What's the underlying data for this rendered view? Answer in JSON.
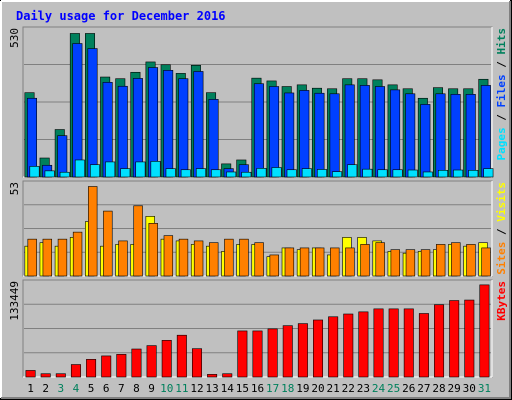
{
  "chart_data": {
    "type": "bar",
    "title": "Daily usage for December 2016",
    "days": [
      "1",
      "2",
      "3",
      "4",
      "5",
      "6",
      "7",
      "8",
      "9",
      "10",
      "11",
      "12",
      "13",
      "14",
      "15",
      "16",
      "17",
      "18",
      "19",
      "20",
      "21",
      "22",
      "23",
      "24",
      "25",
      "26",
      "27",
      "28",
      "29",
      "30",
      "31"
    ],
    "weekend_days": [
      "3",
      "4",
      "10",
      "11",
      "17",
      "18",
      "24",
      "25",
      "31"
    ],
    "colors": {
      "hits": "#00805C",
      "files": "#0040FF",
      "pages": "#00E0FF",
      "visits": "#FFFF00",
      "sites": "#FF8000",
      "kbytes": "#FF0000",
      "weekday_label": "#000000",
      "weekend_label": "#00805C",
      "background": "#C0C0C0",
      "title": "#0000FF"
    },
    "panels": [
      {
        "id": "top",
        "scale_label": "530",
        "ymax": 530,
        "right_labels": [
          {
            "text": "Pages",
            "color": "#00E0FF"
          },
          {
            "text": " / ",
            "color": "#000000"
          },
          {
            "text": "Files",
            "color": "#0040FF"
          },
          {
            "text": " / ",
            "color": "#000000"
          },
          {
            "text": "Hits",
            "color": "#00805C"
          }
        ],
        "series": [
          {
            "name": "Hits",
            "color": "#00805C",
            "values": [
              302,
              68,
              170,
              514,
              514,
              358,
              352,
              375,
              412,
              402,
              371,
              400,
              302,
              47,
              61,
              354,
              344,
              324,
              330,
              318,
              316,
              352,
              352,
              348,
              330,
              316,
              282,
              320,
              316,
              316,
              350
            ]
          },
          {
            "name": "Files",
            "color": "#0040FF",
            "values": [
              282,
              42,
              148,
              478,
              460,
              339,
              325,
              353,
              392,
              382,
              352,
              378,
              278,
              30,
              44,
              334,
              324,
              301,
              310,
              300,
              298,
              330,
              328,
              324,
              312,
              298,
              260,
              298,
              296,
              296,
              328
            ]
          },
          {
            "name": "Pages",
            "color": "#00E0FF",
            "values": [
              38,
              22,
              17,
              61,
              44,
              54,
              30,
              54,
              56,
              30,
              26,
              30,
              26,
              18,
              17,
              31,
              34,
              26,
              30,
              27,
              19,
              44,
              28,
              26,
              26,
              25,
              18,
              24,
              25,
              24,
              30
            ]
          }
        ]
      },
      {
        "id": "middle",
        "scale_label": "53",
        "ymax": 53,
        "right_labels": [
          {
            "text": "Sites",
            "color": "#FF8000"
          },
          {
            "text": " / ",
            "color": "#000000"
          },
          {
            "text": "Visits",
            "color": "#FFFF00"
          }
        ],
        "series": [
          {
            "name": "Visits",
            "color": "#FFFF00",
            "values": [
              17,
              19,
              17,
              22,
              31,
              17,
              18,
              18,
              34,
              21,
              20,
              18,
              17,
              14,
              18,
              18,
              11,
              16,
              15,
              16,
              12,
              22,
              22,
              20,
              14,
              13,
              14,
              15,
              18,
              17,
              19
            ]
          },
          {
            "name": "Sites",
            "color": "#FF8000",
            "values": [
              21,
              21,
              21,
              25,
              51,
              37,
              20,
              40,
              30,
              23,
              21,
              20,
              19,
              21,
              21,
              19,
              12,
              16,
              16,
              16,
              16,
              16,
              18,
              19,
              15,
              15,
              15,
              18,
              19,
              18,
              16
            ]
          }
        ]
      },
      {
        "id": "bottom",
        "scale_label": "133449",
        "ymax": 133449,
        "right_labels": [
          {
            "text": "KBytes",
            "color": "#FF0000"
          }
        ],
        "series": [
          {
            "name": "KBytes",
            "color": "#FF0000",
            "values": [
              9200,
              4600,
              4600,
              17500,
              24800,
              29600,
              31800,
              39300,
              44100,
              51500,
              58700,
              39800,
              3700,
              4600,
              64700,
              64700,
              67600,
              72100,
              75000,
              80100,
              84600,
              88500,
              91500,
              95700,
              95700,
              95700,
              89200,
              101500,
              107400,
              108100,
              129400
            ]
          }
        ]
      }
    ]
  }
}
